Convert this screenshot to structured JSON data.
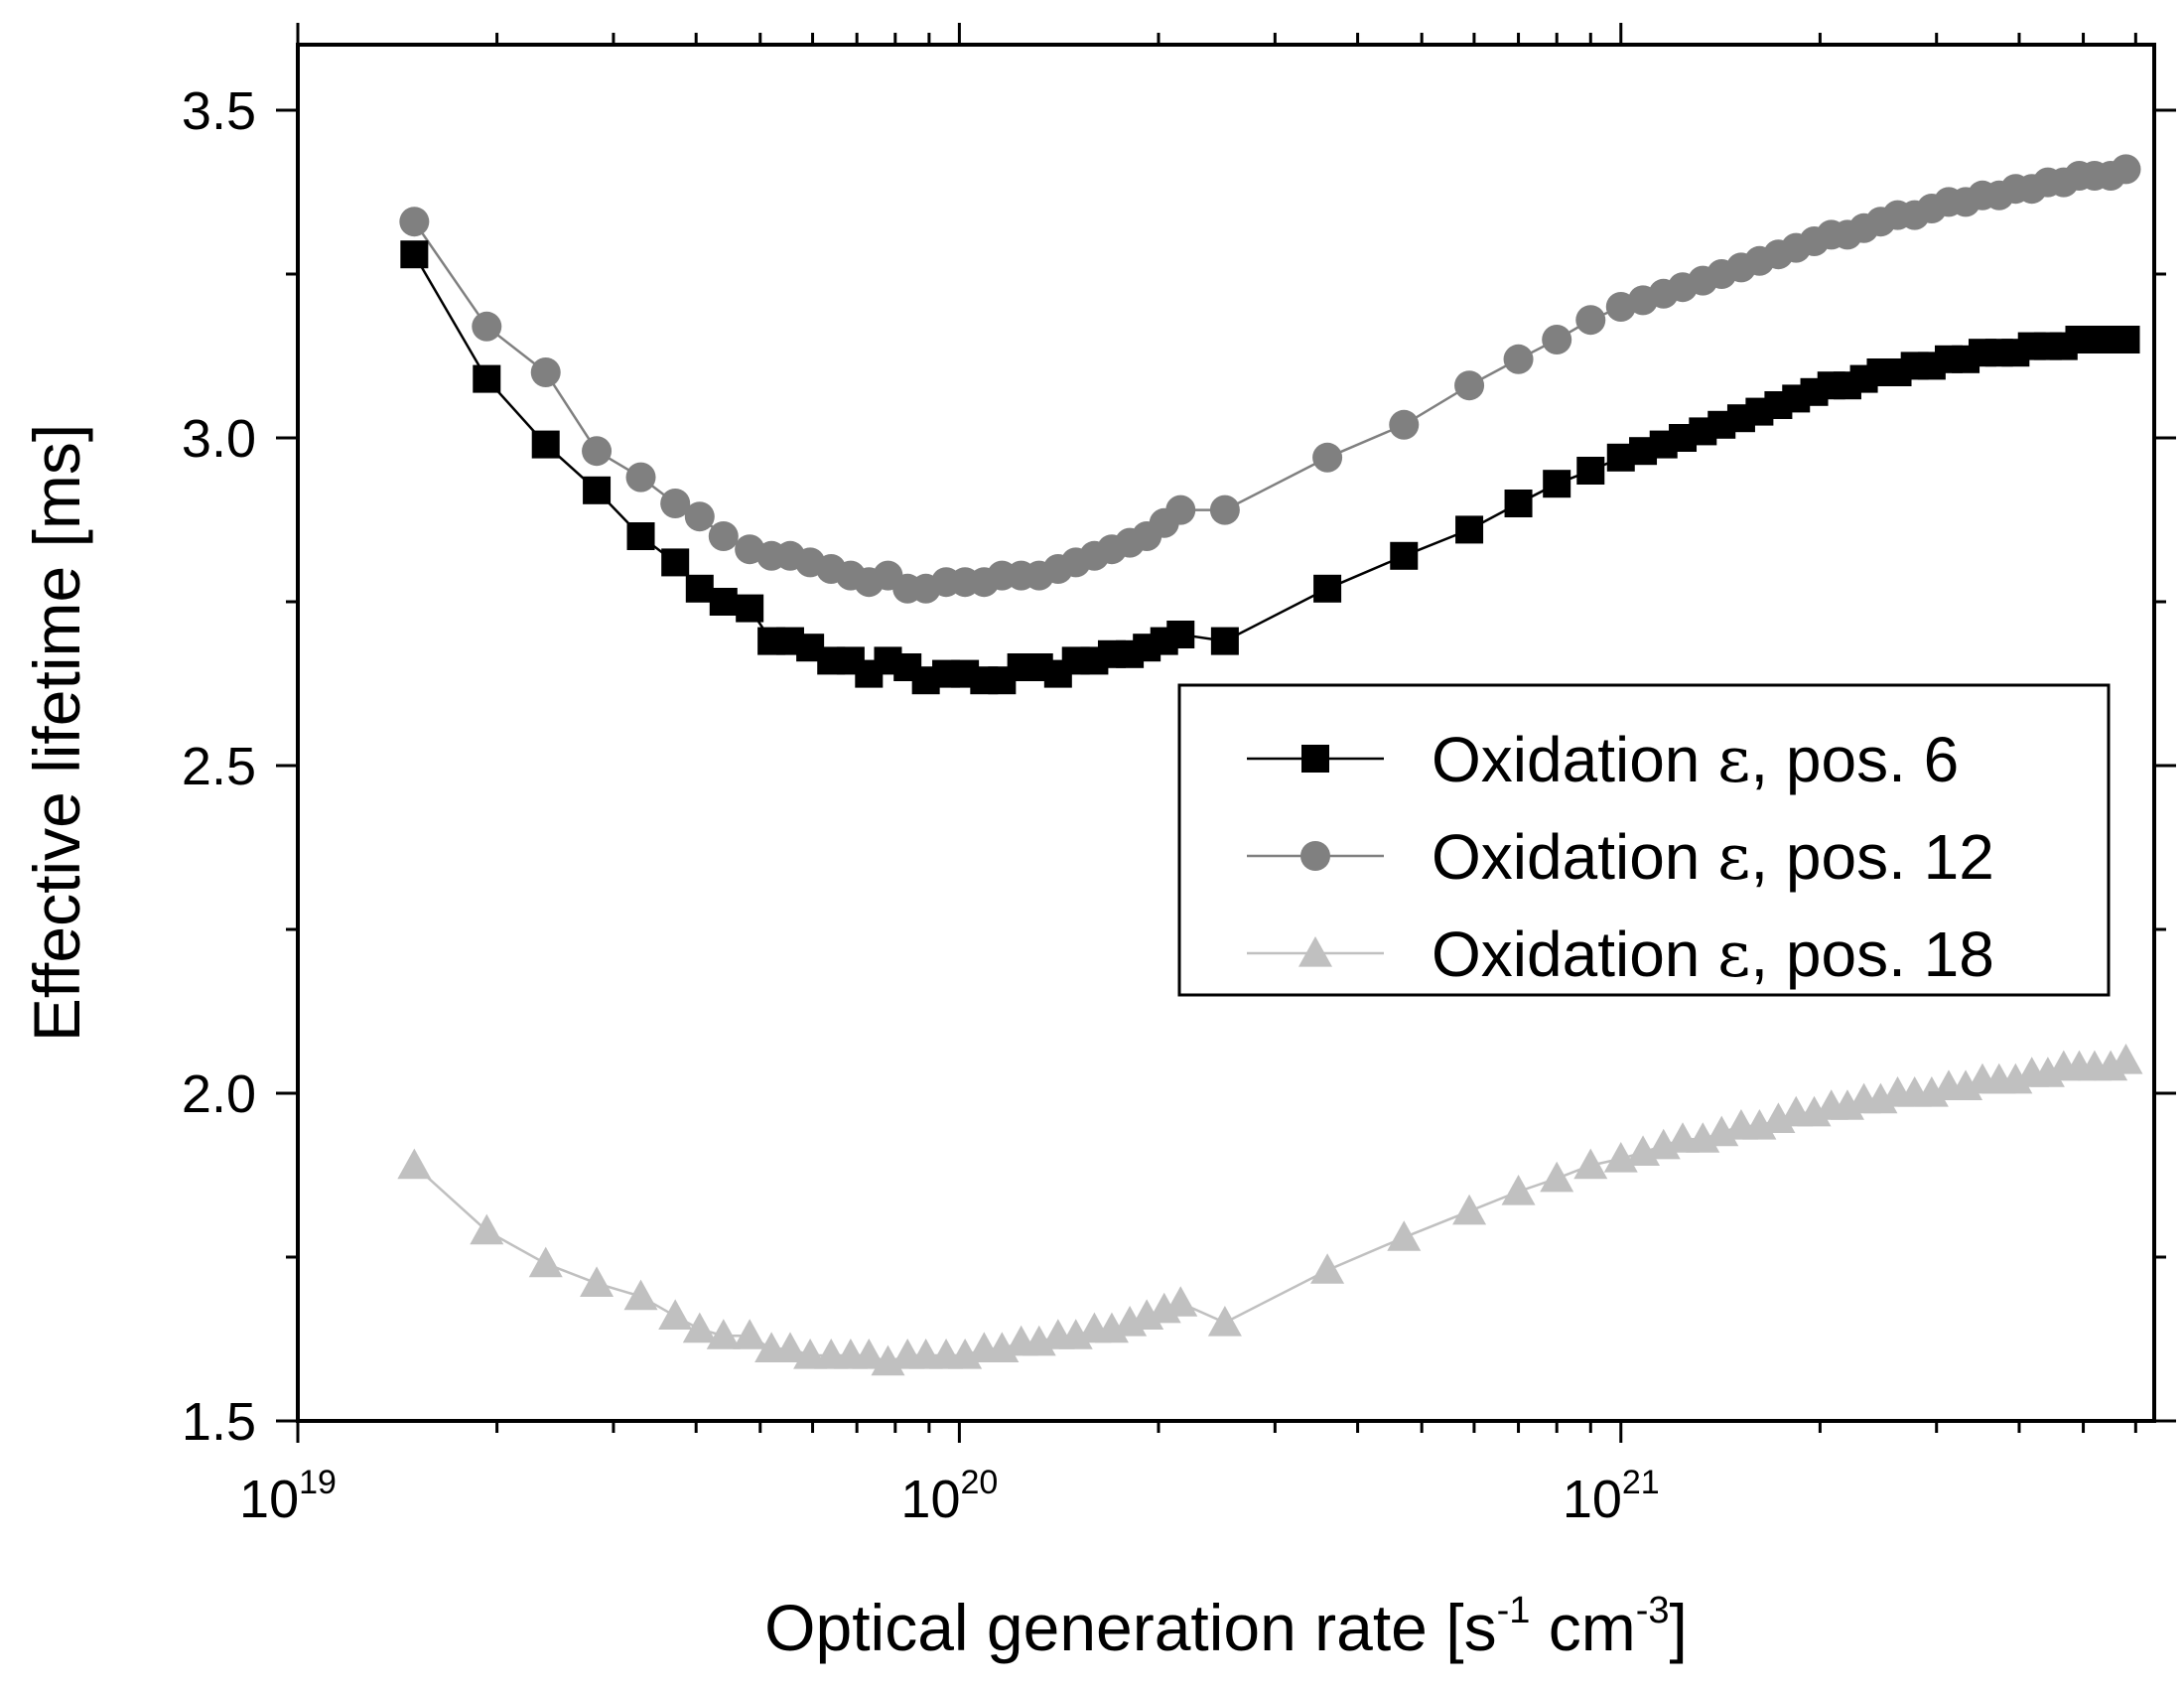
{
  "chart_data": {
    "type": "line",
    "title": "",
    "xlabel": "Optical generation rate [s^-1 cm^-3]",
    "xlabel_parts": {
      "main": "Optical generation rate [s",
      "exp1": "-1",
      "mid": " cm",
      "exp2": "-3",
      "end": "]"
    },
    "ylabel": "Effective lifetime [ms]",
    "xscale": "log",
    "xlim": [
      1e+19,
      6.4e+21
    ],
    "ylim": [
      1.5,
      3.6
    ],
    "x_ticks": [
      {
        "value": 1e+19,
        "base": "10",
        "exp": "19"
      },
      {
        "value": 1e+20,
        "base": "10",
        "exp": "20"
      },
      {
        "value": 1e+21,
        "base": "10",
        "exp": "21"
      }
    ],
    "y_ticks": [
      "1.5",
      "2.0",
      "2.5",
      "3.0",
      "3.5"
    ],
    "y_minor_ticks": [
      1.75,
      2.25,
      2.75,
      3.25
    ],
    "grid": false,
    "legend_position": "center-right",
    "series": [
      {
        "name": "Oxidation ε, pos. 6",
        "label_prefix": "Oxidation ",
        "label_symbol": "ε",
        "label_suffix": ", pos. 6",
        "marker": "square",
        "color": "#000000",
        "x": [
          1.5e+19,
          1.93e+19,
          2.37e+19,
          2.83e+19,
          3.3e+19,
          3.72e+19,
          4.05e+19,
          4.4e+19,
          4.82e+19,
          5.2e+19,
          5.55e+19,
          5.95e+19,
          6.4e+19,
          6.85e+19,
          7.3e+19,
          7.8e+19,
          8.35e+19,
          8.9e+19,
          9.55e+19,
          1.02e+20,
          1.09e+20,
          1.16e+20,
          1.24e+20,
          1.32e+20,
          1.41e+20,
          1.5e+20,
          1.6e+20,
          1.7e+20,
          1.81e+20,
          1.92e+20,
          2.04e+20,
          2.16e+20,
          2.52e+20,
          3.6e+20,
          4.7e+20,
          5.9e+20,
          7e+20,
          8e+20,
          9e+20,
          1e+21,
          1.08e+21,
          1.16e+21,
          1.24e+21,
          1.33e+21,
          1.42e+21,
          1.52e+21,
          1.62e+21,
          1.73e+21,
          1.84e+21,
          1.96e+21,
          2.08e+21,
          2.2e+21,
          2.33e+21,
          2.47e+21,
          2.62e+21,
          2.78e+21,
          2.95e+21,
          3.13e+21,
          3.32e+21,
          3.52e+21,
          3.73e+21,
          3.95e+21,
          4.18e+21,
          4.42e+21,
          4.67e+21,
          4.93e+21,
          5.2e+21,
          5.5e+21,
          5.8e+21
        ],
        "y": [
          3.28,
          3.09,
          2.99,
          2.92,
          2.85,
          2.81,
          2.77,
          2.75,
          2.74,
          2.69,
          2.69,
          2.68,
          2.66,
          2.66,
          2.64,
          2.66,
          2.65,
          2.63,
          2.64,
          2.64,
          2.63,
          2.63,
          2.65,
          2.65,
          2.64,
          2.66,
          2.66,
          2.67,
          2.67,
          2.68,
          2.69,
          2.7,
          2.69,
          2.77,
          2.82,
          2.86,
          2.9,
          2.93,
          2.95,
          2.97,
          2.98,
          2.99,
          3.0,
          3.01,
          3.02,
          3.03,
          3.04,
          3.05,
          3.06,
          3.07,
          3.08,
          3.08,
          3.09,
          3.1,
          3.1,
          3.11,
          3.11,
          3.12,
          3.12,
          3.13,
          3.13,
          3.13,
          3.14,
          3.14,
          3.14,
          3.15,
          3.15,
          3.15,
          3.15
        ]
      },
      {
        "name": "Oxidation ε, pos. 12",
        "label_prefix": "Oxidation ",
        "label_symbol": "ε",
        "label_suffix": ", pos. 12",
        "marker": "circle",
        "color": "#808080",
        "x": [
          1.5e+19,
          1.93e+19,
          2.37e+19,
          2.83e+19,
          3.3e+19,
          3.72e+19,
          4.05e+19,
          4.4e+19,
          4.82e+19,
          5.2e+19,
          5.55e+19,
          5.95e+19,
          6.4e+19,
          6.85e+19,
          7.3e+19,
          7.8e+19,
          8.35e+19,
          8.9e+19,
          9.55e+19,
          1.02e+20,
          1.09e+20,
          1.16e+20,
          1.24e+20,
          1.32e+20,
          1.41e+20,
          1.5e+20,
          1.6e+20,
          1.7e+20,
          1.81e+20,
          1.92e+20,
          2.04e+20,
          2.16e+20,
          2.52e+20,
          3.6e+20,
          4.7e+20,
          5.9e+20,
          7e+20,
          8e+20,
          9e+20,
          1e+21,
          1.08e+21,
          1.16e+21,
          1.24e+21,
          1.33e+21,
          1.42e+21,
          1.52e+21,
          1.62e+21,
          1.73e+21,
          1.84e+21,
          1.96e+21,
          2.08e+21,
          2.2e+21,
          2.33e+21,
          2.47e+21,
          2.62e+21,
          2.78e+21,
          2.95e+21,
          3.13e+21,
          3.32e+21,
          3.52e+21,
          3.73e+21,
          3.95e+21,
          4.18e+21,
          4.42e+21,
          4.67e+21,
          4.93e+21,
          5.2e+21,
          5.5e+21,
          5.8e+21
        ],
        "y": [
          3.33,
          3.17,
          3.1,
          2.98,
          2.94,
          2.9,
          2.88,
          2.85,
          2.83,
          2.82,
          2.82,
          2.81,
          2.8,
          2.79,
          2.78,
          2.79,
          2.77,
          2.77,
          2.78,
          2.78,
          2.78,
          2.79,
          2.79,
          2.79,
          2.8,
          2.81,
          2.82,
          2.83,
          2.84,
          2.85,
          2.87,
          2.89,
          2.89,
          2.97,
          3.02,
          3.08,
          3.12,
          3.15,
          3.18,
          3.2,
          3.21,
          3.22,
          3.23,
          3.24,
          3.25,
          3.26,
          3.27,
          3.28,
          3.29,
          3.3,
          3.31,
          3.31,
          3.32,
          3.33,
          3.34,
          3.34,
          3.35,
          3.36,
          3.36,
          3.37,
          3.37,
          3.38,
          3.38,
          3.39,
          3.39,
          3.4,
          3.4,
          3.4,
          3.41
        ]
      },
      {
        "name": "Oxidation ε, pos. 18",
        "label_prefix": "Oxidation ",
        "label_symbol": "ε",
        "label_suffix": ", pos. 18",
        "marker": "triangle",
        "color": "#c0c0c0",
        "x": [
          1.5e+19,
          1.93e+19,
          2.37e+19,
          2.83e+19,
          3.3e+19,
          3.72e+19,
          4.05e+19,
          4.4e+19,
          4.82e+19,
          5.2e+19,
          5.55e+19,
          5.95e+19,
          6.4e+19,
          6.85e+19,
          7.3e+19,
          7.8e+19,
          8.35e+19,
          8.9e+19,
          9.55e+19,
          1.02e+20,
          1.09e+20,
          1.16e+20,
          1.24e+20,
          1.32e+20,
          1.41e+20,
          1.5e+20,
          1.6e+20,
          1.7e+20,
          1.81e+20,
          1.92e+20,
          2.04e+20,
          2.16e+20,
          2.52e+20,
          3.6e+20,
          4.7e+20,
          5.9e+20,
          7e+20,
          8e+20,
          9e+20,
          1e+21,
          1.08e+21,
          1.16e+21,
          1.24e+21,
          1.33e+21,
          1.42e+21,
          1.52e+21,
          1.62e+21,
          1.73e+21,
          1.84e+21,
          1.96e+21,
          2.08e+21,
          2.2e+21,
          2.33e+21,
          2.47e+21,
          2.62e+21,
          2.78e+21,
          2.95e+21,
          3.13e+21,
          3.32e+21,
          3.52e+21,
          3.73e+21,
          3.95e+21,
          4.18e+21,
          4.42e+21,
          4.67e+21,
          4.93e+21,
          5.2e+21,
          5.5e+21,
          5.8e+21
        ],
        "y": [
          1.89,
          1.79,
          1.74,
          1.71,
          1.69,
          1.66,
          1.64,
          1.63,
          1.63,
          1.61,
          1.61,
          1.6,
          1.6,
          1.6,
          1.6,
          1.59,
          1.6,
          1.6,
          1.6,
          1.6,
          1.61,
          1.61,
          1.62,
          1.62,
          1.63,
          1.63,
          1.64,
          1.64,
          1.65,
          1.66,
          1.67,
          1.68,
          1.65,
          1.73,
          1.78,
          1.82,
          1.85,
          1.87,
          1.89,
          1.9,
          1.91,
          1.92,
          1.93,
          1.93,
          1.94,
          1.95,
          1.95,
          1.96,
          1.97,
          1.97,
          1.98,
          1.98,
          1.99,
          1.99,
          2.0,
          2.0,
          2.0,
          2.01,
          2.01,
          2.02,
          2.02,
          2.02,
          2.03,
          2.03,
          2.04,
          2.04,
          2.04,
          2.04,
          2.05
        ]
      }
    ]
  }
}
